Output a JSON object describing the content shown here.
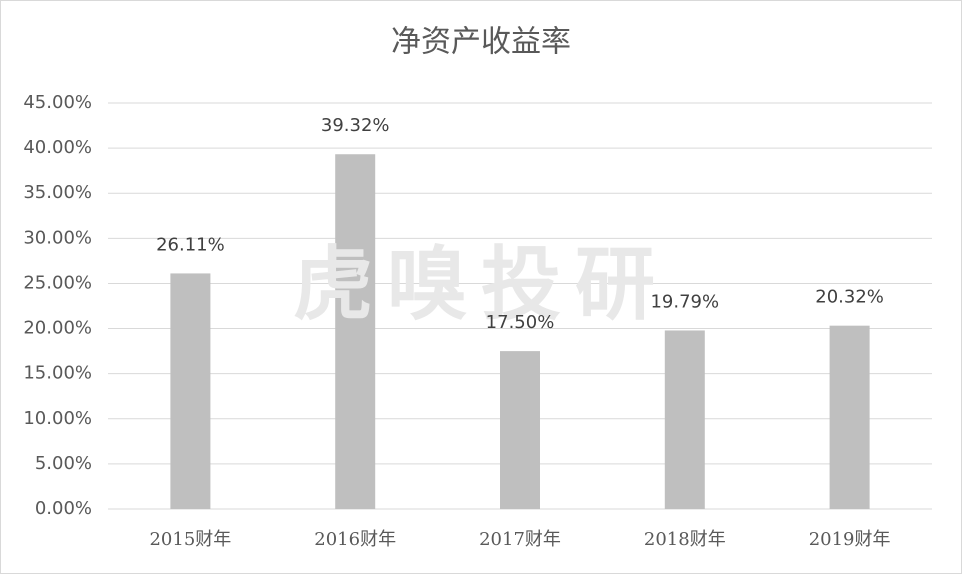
{
  "chart_data": {
    "type": "bar",
    "title": "净资产收益率",
    "watermark": "虎嗅投研",
    "categories": [
      "2015财年",
      "2016财年",
      "2017财年",
      "2018财年",
      "2019财年"
    ],
    "values": [
      26.11,
      39.32,
      17.5,
      19.79,
      20.32
    ],
    "value_labels": [
      "26.11%",
      "39.32%",
      "17.50%",
      "19.79%",
      "20.32%"
    ],
    "color": "#bfbfbf",
    "ylim": [
      0,
      45
    ],
    "yticks": [
      {
        "value": 0,
        "label": "0.00%"
      },
      {
        "value": 5,
        "label": "5.00%"
      },
      {
        "value": 10,
        "label": "10.00%"
      },
      {
        "value": 15,
        "label": "15.00%"
      },
      {
        "value": 20,
        "label": "20.00%"
      },
      {
        "value": 25,
        "label": "25.00%"
      },
      {
        "value": 30,
        "label": "30.00%"
      },
      {
        "value": 35,
        "label": "35.00%"
      },
      {
        "value": 40,
        "label": "40.00%"
      },
      {
        "value": 45,
        "label": "45.00%"
      }
    ],
    "grid": true
  }
}
